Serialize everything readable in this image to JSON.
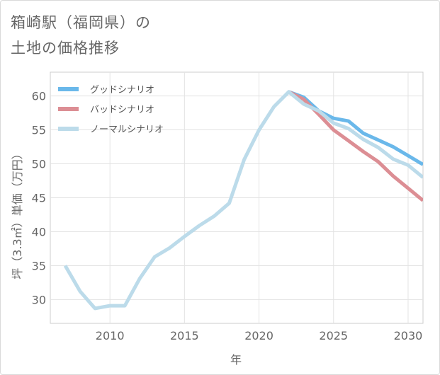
{
  "title": {
    "line1": "箱崎駅（福岡県）の",
    "line2": "土地の価格推移"
  },
  "chart_data": {
    "type": "line",
    "xlabel": "年",
    "ylabel": "坪（3.3㎡）単価（万円）",
    "xlim": [
      2006,
      2031
    ],
    "ylim": [
      26.5,
      63.5
    ],
    "xticks": [
      2010,
      2015,
      2020,
      2025,
      2030
    ],
    "yticks": [
      30,
      35,
      40,
      45,
      50,
      55,
      60
    ],
    "grid": true,
    "legend_position": "top-left",
    "series": [
      {
        "name": "グッドシナリオ",
        "color": "#6ab8ea",
        "x": [
          2022,
          2023,
          2024,
          2025,
          2026,
          2027,
          2028,
          2029,
          2030,
          2031
        ],
        "values": [
          60.6,
          59.8,
          57.8,
          56.7,
          56.3,
          54.5,
          53.5,
          52.5,
          51.2,
          49.9
        ]
      },
      {
        "name": "バッドシナリオ",
        "color": "#dc8e94",
        "x": [
          2022,
          2023,
          2024,
          2025,
          2026,
          2027,
          2028,
          2029,
          2030,
          2031
        ],
        "values": [
          60.6,
          59.5,
          57.3,
          55.0,
          53.4,
          51.8,
          50.3,
          48.2,
          46.4,
          44.6
        ]
      },
      {
        "name": "ノーマルシナリオ",
        "color": "#bcdbea",
        "x": [
          2007,
          2008,
          2009,
          2010,
          2011,
          2012,
          2013,
          2014,
          2015,
          2016,
          2017,
          2018,
          2019,
          2020,
          2021,
          2022,
          2023,
          2024,
          2025,
          2026,
          2027,
          2028,
          2029,
          2030,
          2031
        ],
        "values": [
          35.0,
          31.2,
          28.7,
          29.1,
          29.1,
          33.1,
          36.3,
          37.6,
          39.3,
          40.9,
          42.3,
          44.2,
          50.6,
          55.0,
          58.4,
          60.6,
          58.8,
          57.8,
          56.0,
          55.2,
          53.6,
          52.4,
          50.7,
          49.8,
          48.0
        ]
      }
    ]
  }
}
